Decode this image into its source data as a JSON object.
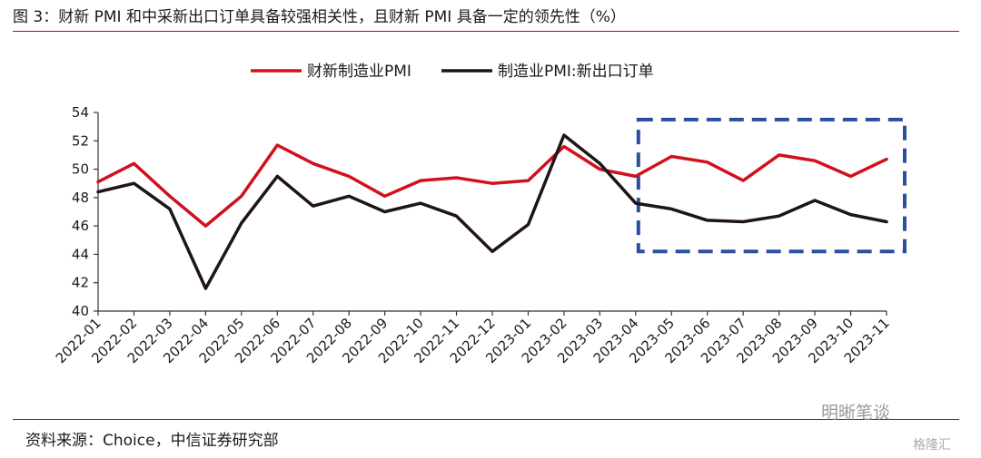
{
  "title": "图 3：财新 PMI 和中采新出口订单具备较强相关性，且财新 PMI 具备一定的领先性（%）",
  "source": "资料来源：Choice，中信证券研究部",
  "watermark": "明晰笔谈",
  "watermark_logo": "格隆汇",
  "colors": {
    "accent": "#c0000f",
    "series1": "#d0101b",
    "series2": "#1f1416",
    "highlight_box": "#2b4fa0"
  },
  "chart_data": {
    "type": "line",
    "categories": [
      "2022-01",
      "2022-02",
      "2022-03",
      "2022-04",
      "2022-05",
      "2022-06",
      "2022-07",
      "2022-08",
      "2022-09",
      "2022-10",
      "2022-11",
      "2022-12",
      "2023-01",
      "2023-02",
      "2023-03",
      "2023-04",
      "2023-05",
      "2023-06",
      "2023-07",
      "2023-08",
      "2023-09",
      "2023-10",
      "2023-11"
    ],
    "series": [
      {
        "name": "财新制造业PMI",
        "values": [
          49.1,
          50.4,
          48.1,
          46.0,
          48.1,
          51.7,
          50.4,
          49.5,
          48.1,
          49.2,
          49.4,
          49.0,
          49.2,
          51.6,
          50.0,
          49.5,
          50.9,
          50.5,
          49.2,
          51.0,
          50.6,
          49.5,
          50.7
        ]
      },
      {
        "name": "制造业PMI:新出口订单",
        "values": [
          48.4,
          49.0,
          47.2,
          41.6,
          46.2,
          49.5,
          47.4,
          48.1,
          47.0,
          47.6,
          46.7,
          44.2,
          46.1,
          52.4,
          50.4,
          47.6,
          47.2,
          46.4,
          46.3,
          46.7,
          47.8,
          46.8,
          46.3
        ]
      }
    ],
    "ylim": [
      40,
      54
    ],
    "yticks": [
      40,
      42,
      44,
      46,
      48,
      50,
      52,
      54
    ],
    "grid": false,
    "legend": "top-center",
    "highlight": {
      "from": "2023-04",
      "to": "2023-11",
      "ylim": [
        44.2,
        53.5
      ],
      "style": "dashed"
    }
  }
}
